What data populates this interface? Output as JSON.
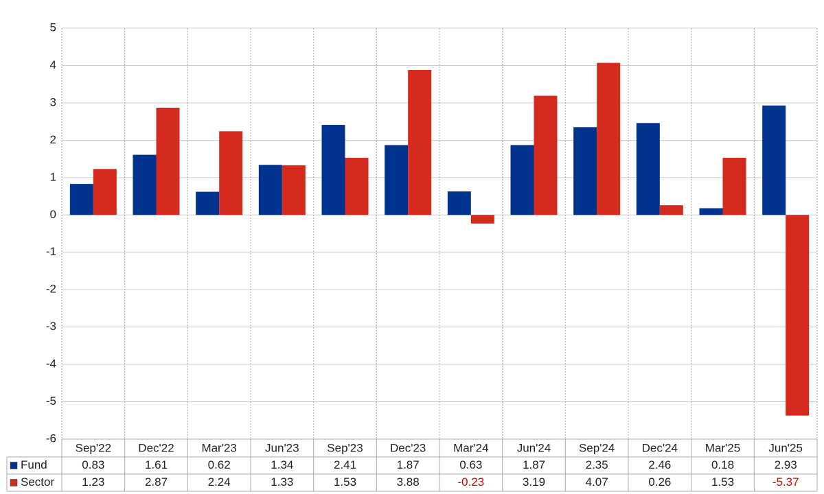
{
  "chart_data": {
    "type": "bar",
    "categories": [
      "Sep'22",
      "Dec'22",
      "Mar'23",
      "Jun'23",
      "Sep'23",
      "Dec'23",
      "Mar'24",
      "Jun'24",
      "Sep'24",
      "Dec'24",
      "Mar'25",
      "Jun'25"
    ],
    "series": [
      {
        "name": "Fund",
        "color": "#00338d",
        "values": [
          0.83,
          1.61,
          0.62,
          1.34,
          2.41,
          1.87,
          0.63,
          1.87,
          2.35,
          2.46,
          0.18,
          2.93
        ]
      },
      {
        "name": "Sector",
        "color": "#d52b1e",
        "values": [
          1.23,
          2.87,
          2.24,
          1.33,
          1.53,
          3.88,
          -0.23,
          3.19,
          4.07,
          0.26,
          1.53,
          -5.37
        ]
      }
    ],
    "ylim": [
      -6,
      5
    ],
    "yticks": [
      -6,
      -5,
      -4,
      -3,
      -2,
      -1,
      0,
      1,
      2,
      3,
      4,
      5
    ],
    "grid": true
  }
}
